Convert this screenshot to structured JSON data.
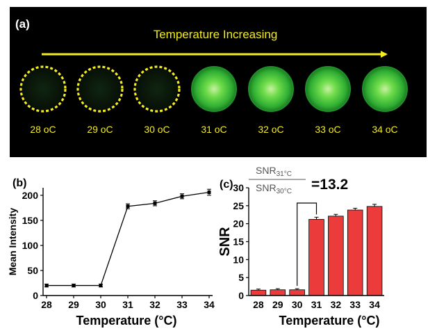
{
  "panel_a": {
    "label": "(a)",
    "arrow_text": "Temperature Increasing",
    "samples": [
      {
        "label": "28 oC",
        "state": "dark"
      },
      {
        "label": "29 oC",
        "state": "dark"
      },
      {
        "label": "30 oC",
        "state": "dark"
      },
      {
        "label": "31 oC",
        "state": "bright"
      },
      {
        "label": "32 oC",
        "state": "bright"
      },
      {
        "label": "33 oC",
        "state": "bright"
      },
      {
        "label": "34 oC",
        "state": "bright"
      }
    ],
    "colors": {
      "background": "#000000",
      "arrow": "#f2ec1e",
      "text": "#f2ec1e",
      "glow": "#37c43a",
      "dark_well": "#0d1a0d"
    }
  },
  "chart_data": [
    {
      "type": "line",
      "panel_label": "(b)",
      "x": [
        28,
        29,
        30,
        31,
        32,
        33,
        34
      ],
      "series": [
        {
          "values": [
            20,
            20,
            20,
            178,
            184,
            198,
            206
          ],
          "errors": [
            3,
            3,
            3,
            5,
            5,
            5,
            6
          ]
        }
      ],
      "title": "",
      "xlabel": "Temperature (°C)",
      "ylabel": "Mean Intensity",
      "xlim": [
        28,
        34
      ],
      "ylim": [
        0,
        215
      ],
      "yticks": [
        0,
        50,
        100,
        150,
        200
      ],
      "grid": false
    },
    {
      "type": "bar",
      "panel_label": "(c)",
      "categories": [
        "28",
        "29",
        "30",
        "31",
        "32",
        "33",
        "34"
      ],
      "series": [
        {
          "values": [
            1.5,
            1.6,
            1.6,
            21.2,
            22.1,
            23.8,
            24.8
          ],
          "errors": [
            0.3,
            0.3,
            0.3,
            0.6,
            0.5,
            0.5,
            0.6
          ]
        }
      ],
      "title": "",
      "xlabel": "Temperature (°C)",
      "ylabel": "SNR",
      "ylim": [
        0,
        30
      ],
      "yticks": [
        0,
        5,
        10,
        15,
        20,
        25,
        30
      ],
      "bar_color": "#ec3b3b",
      "grid": false,
      "annotation": {
        "numerator": "SNR",
        "numerator_sub": "31°C",
        "denominator": "SNR",
        "denominator_sub": "30°C",
        "value": "=13.2",
        "between": [
          "30",
          "31"
        ]
      }
    }
  ]
}
